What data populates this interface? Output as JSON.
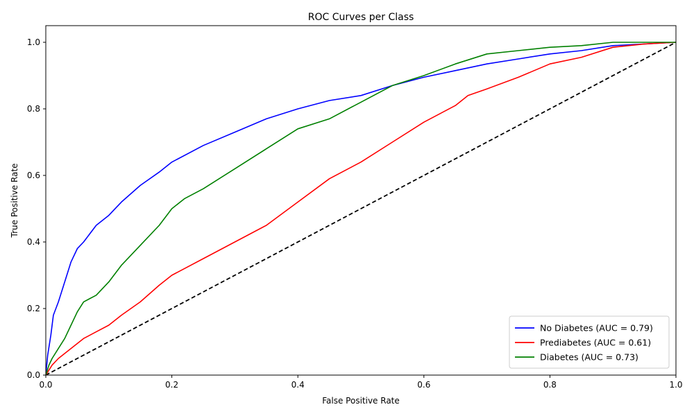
{
  "chart_data": {
    "type": "line",
    "title": "ROC Curves per Class",
    "xlabel": "False Positive Rate",
    "ylabel": "True Positive Rate",
    "xlim": [
      0.0,
      1.0
    ],
    "ylim": [
      0.0,
      1.05
    ],
    "xticks": [
      "0.0",
      "0.2",
      "0.4",
      "0.6",
      "0.8",
      "1.0"
    ],
    "yticks": [
      "0.0",
      "0.2",
      "0.4",
      "0.6",
      "0.8",
      "1.0"
    ],
    "grid": false,
    "legend_position": "lower-right",
    "series": [
      {
        "name": "No Diabetes (AUC = 0.79)",
        "color": "#0000ff",
        "x": [
          0,
          0.003,
          0.008,
          0.012,
          0.02,
          0.03,
          0.04,
          0.05,
          0.06,
          0.08,
          0.1,
          0.12,
          0.15,
          0.18,
          0.2,
          0.25,
          0.3,
          0.35,
          0.4,
          0.45,
          0.5,
          0.55,
          0.6,
          0.65,
          0.7,
          0.75,
          0.8,
          0.85,
          0.9,
          0.95,
          1.0
        ],
        "y": [
          0,
          0.06,
          0.12,
          0.18,
          0.22,
          0.28,
          0.34,
          0.38,
          0.4,
          0.45,
          0.48,
          0.52,
          0.57,
          0.61,
          0.64,
          0.69,
          0.73,
          0.77,
          0.8,
          0.825,
          0.84,
          0.87,
          0.895,
          0.915,
          0.935,
          0.95,
          0.965,
          0.975,
          0.99,
          0.995,
          1.0
        ]
      },
      {
        "name": "Prediabetes (AUC = 0.61)",
        "color": "#ff0000",
        "x": [
          0,
          0.01,
          0.02,
          0.04,
          0.06,
          0.08,
          0.1,
          0.12,
          0.15,
          0.18,
          0.2,
          0.25,
          0.3,
          0.35,
          0.4,
          0.45,
          0.5,
          0.55,
          0.6,
          0.65,
          0.67,
          0.7,
          0.75,
          0.8,
          0.85,
          0.9,
          0.95,
          1.0
        ],
        "y": [
          0,
          0.03,
          0.05,
          0.08,
          0.11,
          0.13,
          0.15,
          0.18,
          0.22,
          0.27,
          0.3,
          0.35,
          0.4,
          0.45,
          0.52,
          0.59,
          0.64,
          0.7,
          0.76,
          0.81,
          0.84,
          0.86,
          0.895,
          0.935,
          0.955,
          0.985,
          0.995,
          1.0
        ]
      },
      {
        "name": "Diabetes (AUC = 0.73)",
        "color": "#008000",
        "x": [
          0,
          0.005,
          0.01,
          0.02,
          0.03,
          0.04,
          0.05,
          0.06,
          0.08,
          0.1,
          0.12,
          0.15,
          0.18,
          0.2,
          0.22,
          0.25,
          0.3,
          0.35,
          0.4,
          0.45,
          0.5,
          0.55,
          0.6,
          0.65,
          0.7,
          0.75,
          0.8,
          0.85,
          0.9,
          1.0
        ],
        "y": [
          0,
          0.03,
          0.05,
          0.08,
          0.11,
          0.15,
          0.19,
          0.22,
          0.24,
          0.28,
          0.33,
          0.39,
          0.45,
          0.5,
          0.53,
          0.56,
          0.62,
          0.68,
          0.74,
          0.77,
          0.82,
          0.87,
          0.9,
          0.935,
          0.965,
          0.975,
          0.985,
          0.99,
          1.0,
          1.0
        ]
      }
    ],
    "reference_line": {
      "x": [
        0,
        1
      ],
      "y": [
        0,
        1
      ],
      "color": "#000000",
      "style": "dashed"
    }
  }
}
